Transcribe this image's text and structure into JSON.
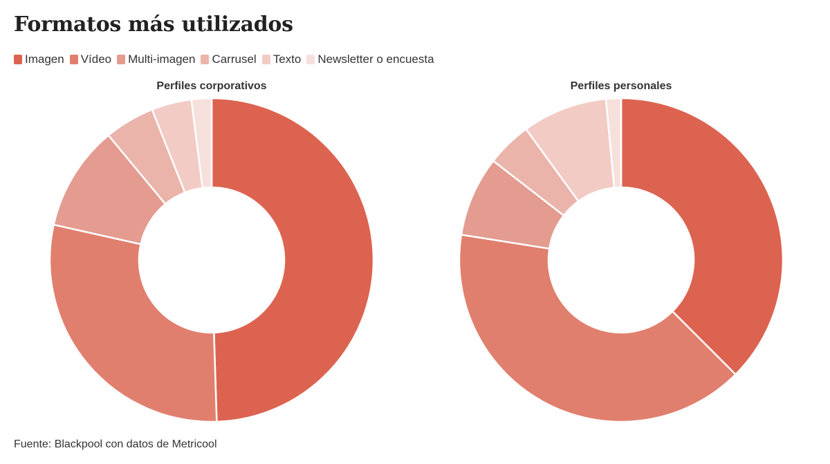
{
  "title": "Formatos más utilizados",
  "source": "Fuente: Blackpool con datos de Metricool",
  "legend": [
    {
      "label": "Imagen",
      "color": "#dc6350"
    },
    {
      "label": "Vídeo",
      "color": "#e17f6e"
    },
    {
      "label": "Multi-imagen",
      "color": "#e49b90"
    },
    {
      "label": "Carrusel",
      "color": "#eab4ab"
    },
    {
      "label": "Texto",
      "color": "#f1cbc4"
    },
    {
      "label": "Newsletter o encuesta",
      "color": "#f6e0dc"
    }
  ],
  "chart_data": [
    {
      "type": "donut",
      "title": "Perfiles corporativos",
      "categories": [
        "Imagen",
        "Vídeo",
        "Multi-imagen",
        "Carrusel",
        "Texto",
        "Newsletter o encuesta"
      ],
      "values": [
        49.5,
        29.0,
        10.5,
        5.0,
        4.0,
        2.0
      ]
    },
    {
      "type": "donut",
      "title": "Perfiles personales",
      "categories": [
        "Imagen",
        "Vídeo",
        "Multi-imagen",
        "Carrusel",
        "Texto",
        "Newsletter o encuesta"
      ],
      "values": [
        37.5,
        40.0,
        8.0,
        4.5,
        8.5,
        1.5
      ]
    }
  ]
}
